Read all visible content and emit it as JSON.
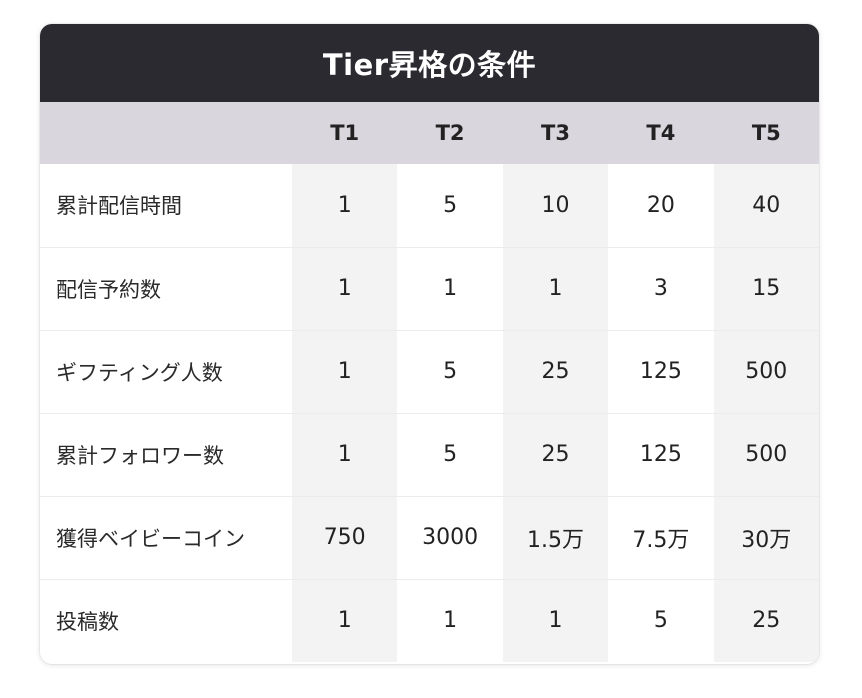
{
  "title": "Tier昇格の条件",
  "header": {
    "corner": "",
    "tiers": [
      "T1",
      "T2",
      "T3",
      "T4",
      "T5"
    ]
  },
  "rows": [
    {
      "label": "累計配信時間",
      "values": [
        "1",
        "5",
        "10",
        "20",
        "40"
      ]
    },
    {
      "label": "配信予約数",
      "values": [
        "1",
        "1",
        "1",
        "3",
        "15"
      ]
    },
    {
      "label": "ギフティング人数",
      "values": [
        "1",
        "5",
        "25",
        "125",
        "500"
      ]
    },
    {
      "label": "累計フォロワー数",
      "values": [
        "1",
        "5",
        "25",
        "125",
        "500"
      ]
    },
    {
      "label": "獲得ベイビーコイン",
      "values": [
        "750",
        "3000",
        "1.5万",
        "7.5万",
        "30万"
      ]
    },
    {
      "label": "投稿数",
      "values": [
        "1",
        "1",
        "1",
        "5",
        "25"
      ]
    }
  ],
  "colors": {
    "title_bg": "#2b2a31",
    "header_bg": "#d9d6de",
    "shaded_column_bg": "#f3f3f4"
  }
}
